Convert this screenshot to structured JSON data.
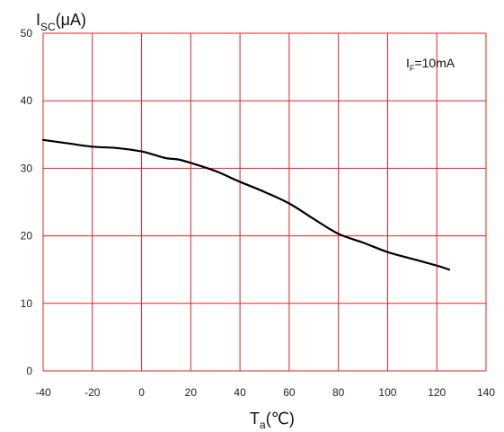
{
  "chart_data": {
    "type": "line",
    "title": "",
    "xlabel": {
      "main": "T",
      "subscript": "a",
      "unit": "(℃)"
    },
    "ylabel": {
      "main": "I",
      "subscript": "SC",
      "unit": "(μA)"
    },
    "xlim": [
      -40,
      140
    ],
    "ylim": [
      0,
      50
    ],
    "x_ticks": [
      -40,
      -20,
      0,
      20,
      40,
      60,
      80,
      100,
      120,
      140
    ],
    "y_ticks": [
      0,
      10,
      20,
      30,
      40,
      50
    ],
    "grid": true,
    "annotation": {
      "main": "I",
      "subscript": "F",
      "rest": "=10mA"
    },
    "colors": {
      "grid": "#e4202a",
      "series": "#000000",
      "text": "#222222"
    },
    "series": [
      {
        "x": [
          -40,
          -30,
          -20,
          -10,
          0,
          5,
          10,
          15,
          20,
          30,
          40,
          50,
          60,
          70,
          80,
          90,
          100,
          110,
          120,
          125
        ],
        "y": [
          34.2,
          33.7,
          33.2,
          33.0,
          32.5,
          32.0,
          31.5,
          31.3,
          30.8,
          29.6,
          28.0,
          26.5,
          24.8,
          22.5,
          20.3,
          19.0,
          17.6,
          16.6,
          15.6,
          15.0
        ]
      }
    ]
  }
}
